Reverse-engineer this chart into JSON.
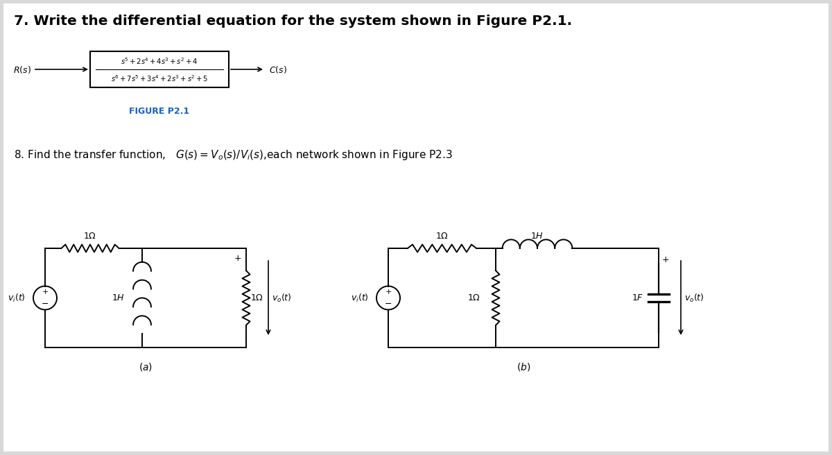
{
  "bg_color": "#d8d8d8",
  "white": "#ffffff",
  "black": "#000000",
  "fig_blue": "#1565C0",
  "q7_title": "7. Write the differential equation for the system shown in Figure P2.1.",
  "q8_title": "8. Find the transfer function,",
  "figure_label": "FIGURE P2.1",
  "fig_width": 12.0,
  "fig_height": 6.56
}
